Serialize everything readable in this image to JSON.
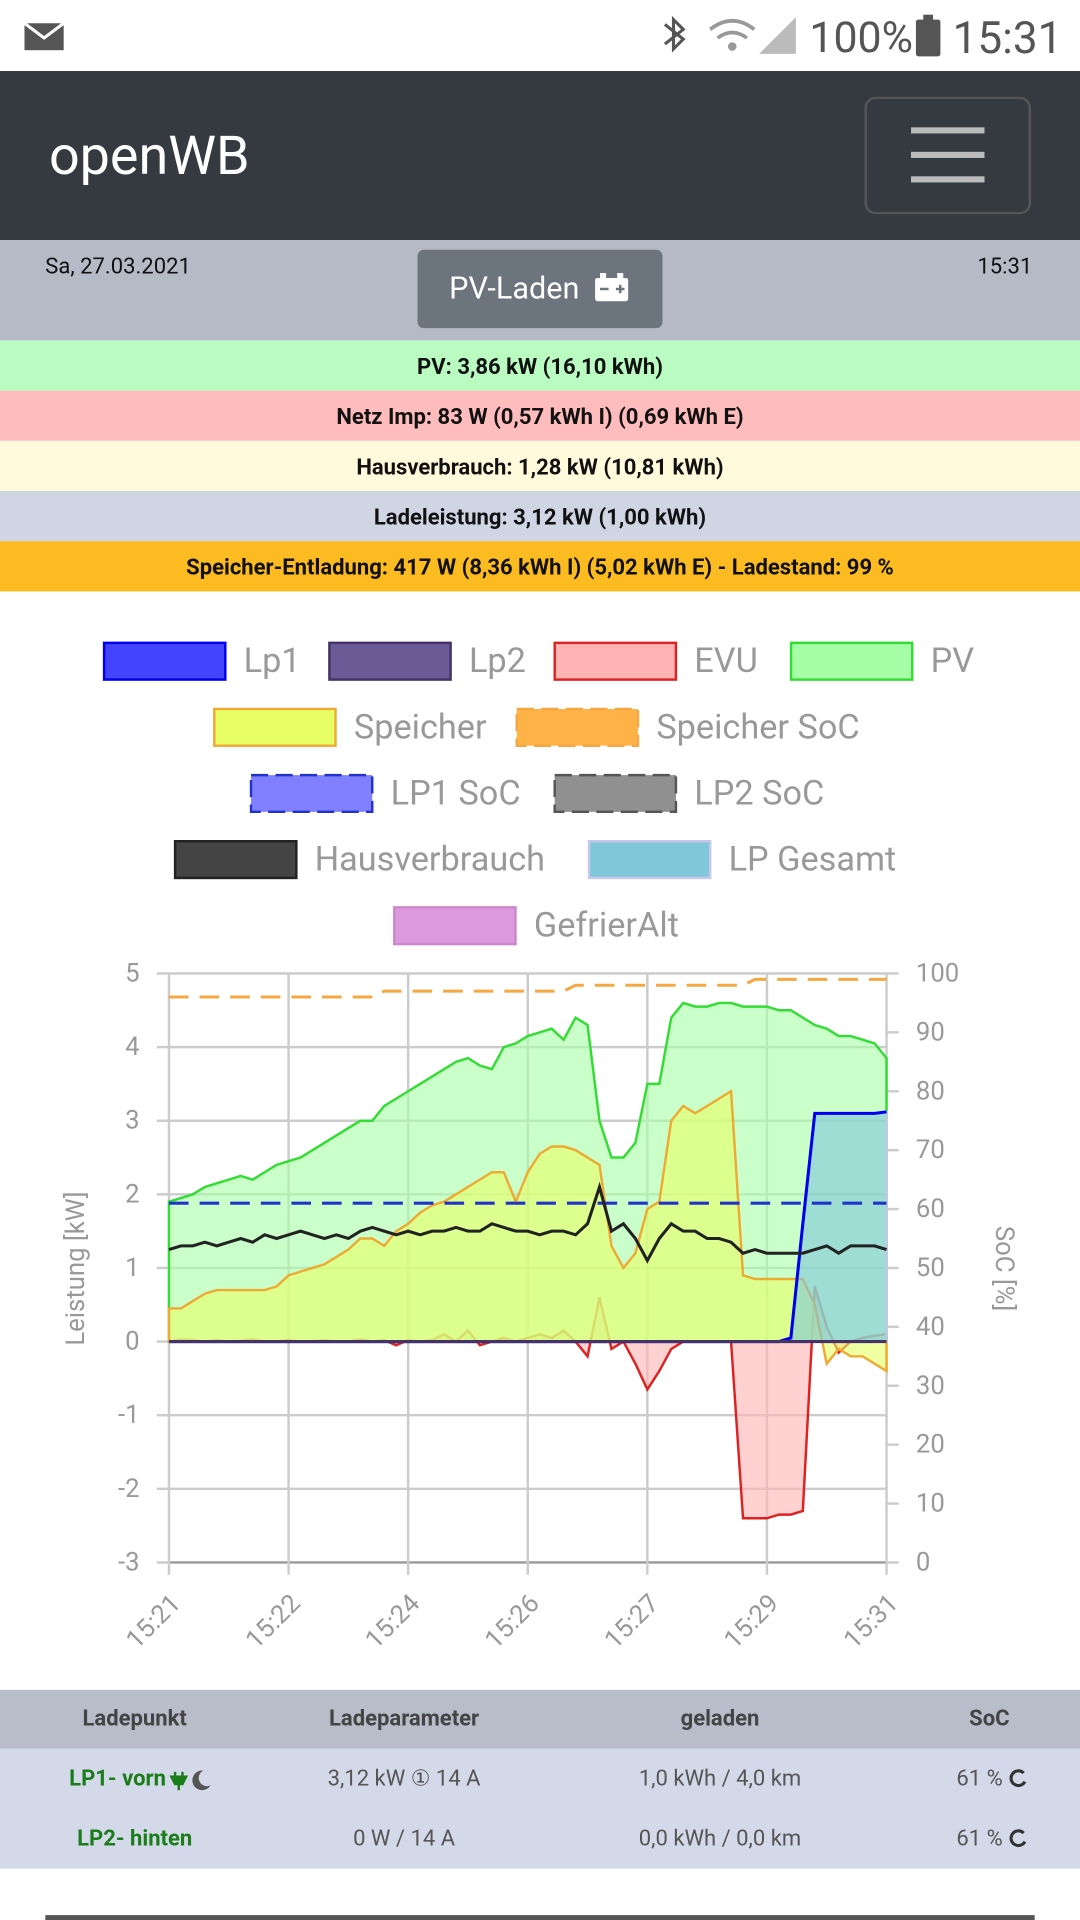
{
  "status_bar": {
    "battery": "100%",
    "time": "15:31"
  },
  "header": {
    "title": "openWB"
  },
  "info": {
    "date": "Sa, 27.03.2021",
    "mode": "PV-Laden",
    "time": "15:31"
  },
  "summary": [
    "PV: 3,86 kW (16,10 kWh)",
    "Netz Imp: 83 W (0,57 kWh I) (0,69 kWh E)",
    "Hausverbrauch: 1,28 kW (10,81 kWh)",
    "Ladeleistung: 3,12 kW (1,00 kWh)",
    "Speicher-Entladung: 417 W (8,36 kWh I) (5,02 kWh E) - Ladestand: 99 %"
  ],
  "chart_data": {
    "type": "line",
    "ylabel": "Leistung [kW]",
    "y2label": "SoC [%]",
    "categories": [
      "15:21",
      null,
      null,
      null,
      null,
      null,
      null,
      null,
      null,
      null,
      "15:22",
      null,
      null,
      null,
      null,
      null,
      null,
      null,
      null,
      null,
      "15:24",
      null,
      null,
      null,
      null,
      null,
      null,
      null,
      null,
      null,
      "15:26",
      null,
      null,
      null,
      null,
      null,
      null,
      null,
      null,
      null,
      "15:27",
      null,
      null,
      null,
      null,
      null,
      null,
      null,
      null,
      null,
      "15:29",
      null,
      null,
      null,
      null,
      null,
      null,
      null,
      null,
      null,
      "15:31"
    ],
    "ylim": [
      -3,
      5
    ],
    "yticks": [
      5,
      4,
      3,
      2,
      1,
      0,
      -1,
      -2,
      -3
    ],
    "y2lim": [
      0,
      100
    ],
    "y2ticks": [
      100,
      90,
      80,
      70,
      60,
      50,
      40,
      30,
      20,
      10,
      0
    ],
    "grid": true,
    "series": [
      {
        "name": "Lp1",
        "color": "#0000ee",
        "fill": "#4444ff",
        "style": "line",
        "dash": false,
        "values": [
          0,
          0,
          0,
          0,
          0,
          0,
          0,
          0,
          0,
          0,
          0,
          0,
          0,
          0,
          0,
          0,
          0,
          0,
          0,
          0,
          0,
          0,
          0,
          0,
          0,
          0,
          0,
          0,
          0,
          0,
          0,
          0,
          0,
          0,
          0,
          0,
          0,
          0,
          0,
          0,
          0,
          0,
          0,
          0,
          0,
          0,
          0,
          0,
          0,
          0,
          0,
          0,
          0.05,
          1.6,
          3.1,
          3.1,
          3.1,
          3.1,
          3.1,
          3.1,
          3.12
        ]
      },
      {
        "name": "Lp2",
        "color": "#443366",
        "fill": "#6a5a95",
        "style": "line",
        "dash": false,
        "values": [
          0,
          0,
          0,
          0,
          0,
          0,
          0,
          0,
          0,
          0,
          0,
          0,
          0,
          0,
          0,
          0,
          0,
          0,
          0,
          0,
          0,
          0,
          0,
          0,
          0,
          0,
          0,
          0,
          0,
          0,
          0,
          0,
          0,
          0,
          0,
          0,
          0,
          0,
          0,
          0,
          0,
          0,
          0,
          0,
          0,
          0,
          0,
          0,
          0,
          0,
          0,
          0,
          0,
          0,
          0,
          0,
          0,
          0,
          0,
          0,
          0
        ]
      },
      {
        "name": "EVU",
        "color": "#dd2222",
        "fill": "#ffb3b3",
        "style": "area",
        "dash": false,
        "values": [
          0,
          0.03,
          0.02,
          0,
          0.02,
          0,
          0.01,
          0.03,
          0,
          0,
          0.02,
          0,
          0,
          0.02,
          0,
          0,
          0.03,
          0,
          0.02,
          -0.05,
          0.02,
          0,
          0.02,
          0.1,
          0,
          0.15,
          -0.05,
          0,
          0.05,
          0,
          0.05,
          0.1,
          0.05,
          0.15,
          0,
          -0.2,
          0.6,
          -0.1,
          0,
          -0.3,
          -0.65,
          -0.4,
          -0.1,
          0,
          0,
          0,
          0,
          0,
          -2.4,
          -2.4,
          -2.4,
          -2.35,
          -2.35,
          -2.3,
          0.75,
          0.2,
          -0.15,
          0,
          0.05,
          0.08,
          0.1
        ]
      },
      {
        "name": "PV",
        "color": "#33dd33",
        "fill": "#a6ffa6",
        "style": "area",
        "dash": false,
        "values": [
          1.9,
          1.95,
          2.0,
          2.1,
          2.15,
          2.2,
          2.25,
          2.2,
          2.3,
          2.4,
          2.45,
          2.5,
          2.6,
          2.7,
          2.8,
          2.9,
          3.0,
          3.0,
          3.2,
          3.3,
          3.4,
          3.5,
          3.6,
          3.7,
          3.8,
          3.85,
          3.75,
          3.7,
          4.0,
          4.05,
          4.15,
          4.2,
          4.25,
          4.1,
          4.4,
          4.3,
          3.0,
          2.5,
          2.5,
          2.7,
          3.5,
          3.5,
          4.4,
          4.6,
          4.55,
          4.55,
          4.6,
          4.6,
          4.55,
          4.55,
          4.55,
          4.5,
          4.5,
          4.4,
          4.3,
          4.25,
          4.15,
          4.15,
          4.1,
          4.05,
          3.85
        ]
      },
      {
        "name": "Speicher",
        "color": "#eeaa33",
        "fill": "#e8ff66",
        "style": "area",
        "dash": false,
        "values": [
          0.45,
          0.45,
          0.55,
          0.65,
          0.7,
          0.7,
          0.7,
          0.7,
          0.7,
          0.75,
          0.9,
          0.95,
          1.0,
          1.05,
          1.15,
          1.25,
          1.4,
          1.4,
          1.3,
          1.5,
          1.6,
          1.75,
          1.85,
          1.9,
          2.0,
          2.1,
          2.2,
          2.3,
          2.3,
          1.9,
          2.3,
          2.55,
          2.65,
          2.65,
          2.6,
          2.5,
          2.4,
          1.3,
          1.0,
          1.2,
          1.8,
          1.9,
          3.0,
          3.2,
          3.1,
          3.2,
          3.3,
          3.4,
          0.9,
          0.85,
          0.85,
          0.85,
          0.85,
          0.85,
          0.5,
          -0.3,
          -0.1,
          -0.2,
          -0.2,
          -0.3,
          -0.4
        ]
      },
      {
        "name": "Speicher SoC",
        "color": "#f5a742",
        "fill": "#ffb347",
        "style": "line",
        "dash": true,
        "axis": "y2",
        "values": [
          96,
          96,
          96,
          96,
          96,
          96,
          96,
          96,
          96,
          96,
          96,
          96,
          96,
          96,
          96,
          96,
          96,
          96,
          97,
          97,
          97,
          97,
          97,
          97,
          97,
          97,
          97,
          97,
          97,
          97,
          97,
          97,
          97,
          97,
          98,
          98,
          98,
          98,
          98,
          98,
          98,
          98,
          98,
          98,
          98,
          98,
          98,
          98,
          98,
          99,
          99,
          99,
          99,
          99,
          99,
          99,
          99,
          99,
          99,
          99,
          99
        ]
      },
      {
        "name": "LP1 SoC",
        "color": "#2233cc",
        "fill": "#8080ff",
        "style": "line",
        "dash": true,
        "axis": "y2",
        "values": [
          61,
          61,
          61,
          61,
          61,
          61,
          61,
          61,
          61,
          61,
          61,
          61,
          61,
          61,
          61,
          61,
          61,
          61,
          61,
          61,
          61,
          61,
          61,
          61,
          61,
          61,
          61,
          61,
          61,
          61,
          61,
          61,
          61,
          61,
          61,
          61,
          61,
          61,
          61,
          61,
          61,
          61,
          61,
          61,
          61,
          61,
          61,
          61,
          61,
          61,
          61,
          61,
          61,
          61,
          61,
          61,
          61,
          61,
          61,
          61,
          61
        ]
      },
      {
        "name": "LP2 SoC",
        "color": "#555555",
        "fill": "#909090",
        "style": "line",
        "dash": true,
        "axis": "y2",
        "values": [
          null,
          null,
          null,
          null,
          null,
          null,
          null,
          null,
          null,
          null,
          null,
          null,
          null,
          null,
          null,
          null,
          null,
          null,
          null,
          null,
          null,
          null,
          null,
          null,
          null,
          null,
          null,
          null,
          null,
          null,
          null,
          null,
          null,
          null,
          null,
          null,
          null,
          null,
          null,
          null,
          null,
          null,
          null,
          null,
          null,
          null,
          null,
          null,
          null,
          null,
          null,
          null,
          null,
          null,
          null,
          null,
          null,
          null,
          null,
          null,
          null
        ]
      },
      {
        "name": "Hausverbrauch",
        "color": "#222222",
        "fill": "#444444",
        "style": "line",
        "dash": false,
        "values": [
          1.25,
          1.3,
          1.3,
          1.35,
          1.3,
          1.35,
          1.4,
          1.35,
          1.45,
          1.4,
          1.45,
          1.5,
          1.45,
          1.4,
          1.45,
          1.4,
          1.5,
          1.55,
          1.5,
          1.45,
          1.5,
          1.45,
          1.5,
          1.5,
          1.55,
          1.5,
          1.5,
          1.6,
          1.55,
          1.5,
          1.5,
          1.45,
          1.5,
          1.5,
          1.45,
          1.6,
          2.1,
          1.5,
          1.6,
          1.4,
          1.1,
          1.4,
          1.6,
          1.5,
          1.5,
          1.4,
          1.4,
          1.35,
          1.2,
          1.25,
          1.2,
          1.2,
          1.2,
          1.2,
          1.25,
          1.3,
          1.2,
          1.3,
          1.3,
          1.3,
          1.25
        ]
      },
      {
        "name": "LP Gesamt",
        "color": "#c8c8ee",
        "fill": "#7fc7d9",
        "style": "area",
        "dash": false,
        "values": [
          0,
          0,
          0,
          0,
          0,
          0,
          0,
          0,
          0,
          0,
          0,
          0,
          0,
          0,
          0,
          0,
          0,
          0,
          0,
          0,
          0,
          0,
          0,
          0,
          0,
          0,
          0,
          0,
          0,
          0,
          0,
          0,
          0,
          0,
          0,
          0,
          0,
          0,
          0,
          0,
          0,
          0,
          0,
          0,
          0,
          0,
          0,
          0,
          0,
          0,
          0,
          0,
          0.05,
          1.6,
          3.1,
          3.1,
          3.1,
          3.1,
          3.1,
          3.1,
          3.12
        ]
      },
      {
        "name": "GefrierAlt",
        "color": "#cc88cc",
        "fill": "#dd99dd",
        "style": "line",
        "dash": false,
        "values": [
          null,
          null,
          null,
          null,
          null,
          null,
          null,
          null,
          null,
          null,
          null,
          null,
          null,
          null,
          null,
          null,
          null,
          null,
          null,
          null,
          null,
          null,
          null,
          null,
          null,
          null,
          null,
          null,
          null,
          null,
          null,
          null,
          null,
          null,
          null,
          null,
          null,
          null,
          null,
          null,
          null,
          null,
          null,
          null,
          null,
          null,
          null,
          null,
          null,
          null,
          null,
          null,
          null,
          null,
          null,
          null,
          null,
          null,
          null,
          null,
          null
        ]
      }
    ]
  },
  "table": {
    "headers": [
      "Ladepunkt",
      "Ladeparameter",
      "geladen",
      "SoC"
    ],
    "rows": [
      [
        "LP1- vorn",
        "3,12 kW ① 14 A",
        "1,0 kWh / 4,0 km",
        "61 %"
      ],
      [
        "LP2- hinten",
        "0 W / 14 A",
        "0,0 kWh / 0,0 km",
        "61 %"
      ]
    ]
  }
}
